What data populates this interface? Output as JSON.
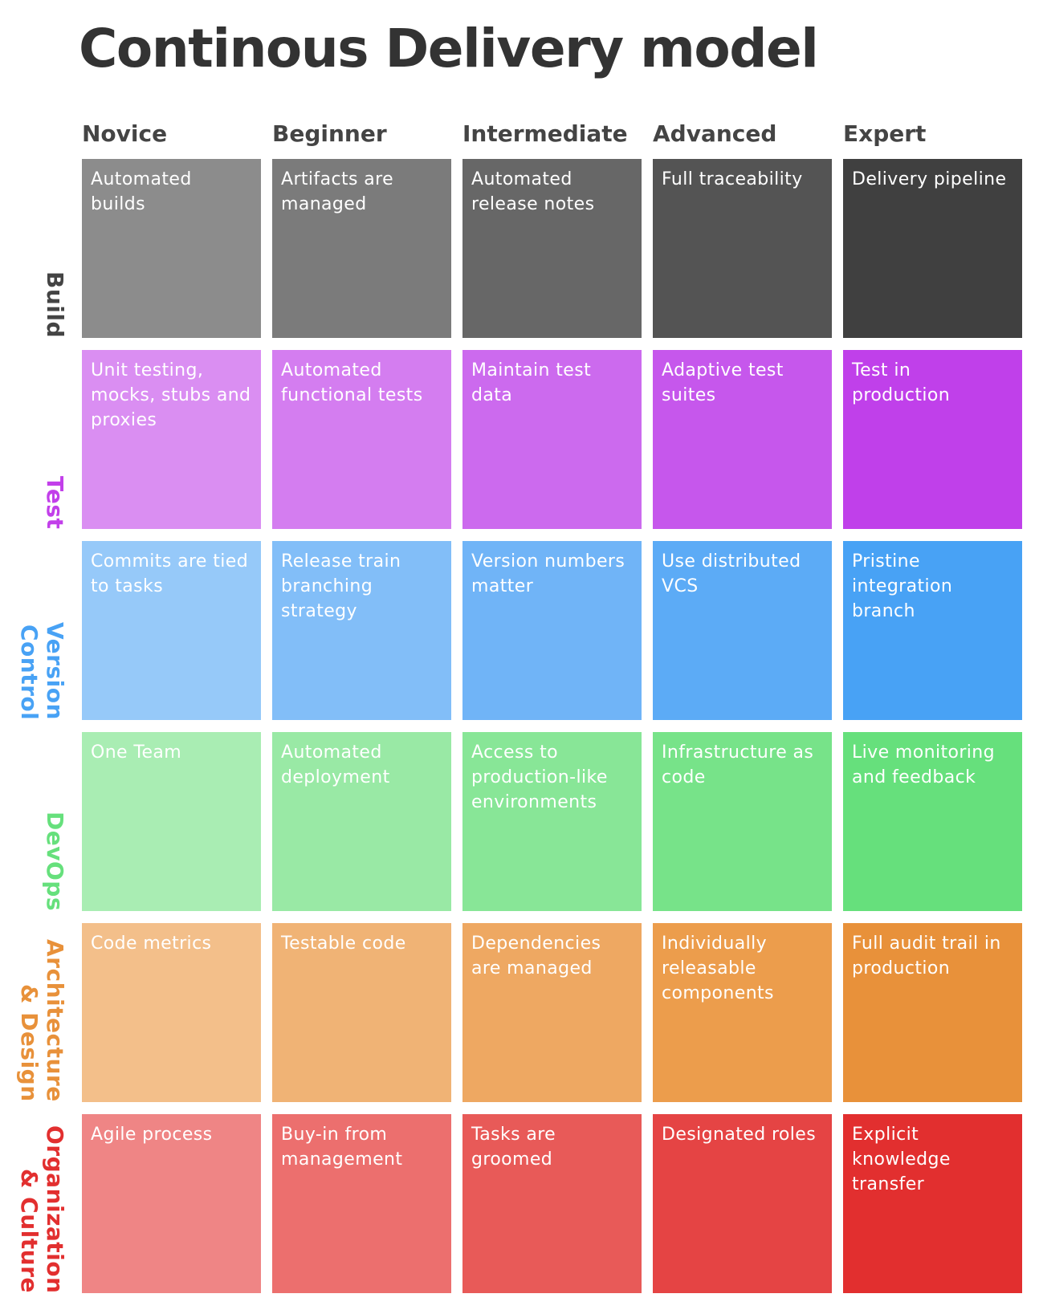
{
  "title": "Continous Delivery model",
  "levels": [
    "Novice",
    "Beginner",
    "Intermediate",
    "Advanced",
    "Expert"
  ],
  "rows": [
    {
      "label": "Build",
      "color": "#444444",
      "colors": [
        "#8c8c8c",
        "#7b7b7b",
        "#676767",
        "#545454",
        "#404040"
      ],
      "cells": [
        "Automated builds",
        "Artifacts are managed",
        "Automated release notes",
        "Full traceability",
        "Delivery pipeline"
      ]
    },
    {
      "label": "Test",
      "color": "#c23fea",
      "colors": [
        "#da8ef2",
        "#d47df0",
        "#cc6aee",
        "#c657ec",
        "#c040ea"
      ],
      "cells": [
        "Unit testing, mocks, stubs and proxies",
        "Automated functional tests",
        "Maintain test data",
        "Adaptive test suites",
        "Test in production"
      ]
    },
    {
      "label": "Version\nControl",
      "color": "#48a2f5",
      "colors": [
        "#96c9f9",
        "#82bef8",
        "#70b4f7",
        "#5cabf6",
        "#48a2f5"
      ],
      "cells": [
        "Commits are tied to tasks",
        "Release train branching strategy",
        "Version numbers matter",
        "Use distributed VCS",
        "Pristine integration branch"
      ]
    },
    {
      "label": "DevOps",
      "color": "#66e07c",
      "colors": [
        "#a9edb3",
        "#99e9a5",
        "#88e697",
        "#77e389",
        "#66e07c"
      ],
      "cells": [
        "One Team",
        "Automated deployment",
        "Access to production-like environments",
        "Infrastructure as code",
        "Live monitoring and feedback"
      ]
    },
    {
      "label": "Architecture\n& Design",
      "color": "#e8913a",
      "colors": [
        "#f3bf8a",
        "#f0b375",
        "#eea862",
        "#ec9d4c",
        "#e8913a"
      ],
      "cells": [
        "Code metrics",
        "Testable code",
        "Dependencies are managed",
        "Individually releasable components",
        "Full audit trail in production"
      ]
    },
    {
      "label": "Organization\n& Culture",
      "color": "#e22f2f",
      "colors": [
        "#ef8585",
        "#ec6f6e",
        "#e85a58",
        "#e54444",
        "#e22f2f"
      ],
      "cells": [
        "Agile process",
        "Buy-in from management",
        "Tasks are groomed",
        "Designated roles",
        "Explicit knowledge transfer"
      ]
    }
  ]
}
